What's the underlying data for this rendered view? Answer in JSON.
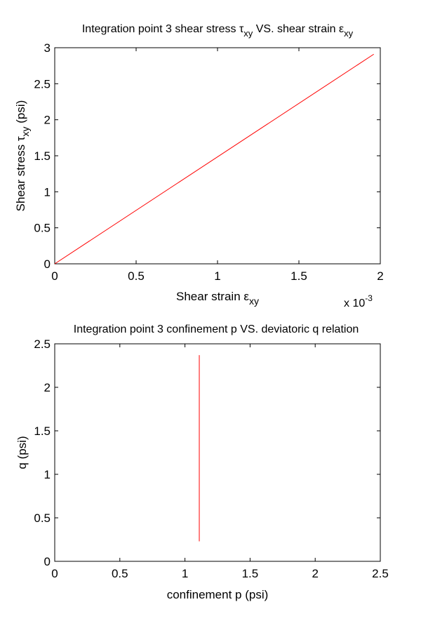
{
  "chart_data": [
    {
      "type": "line",
      "title": "Integration point 3 shear stress τxy VS. shear strain εxy",
      "title_parts": {
        "a": "Integration point 3 shear stress ",
        "tau": "τ",
        "tau_sub": "xy",
        "b": " VS. shear strain ",
        "eps": "ε",
        "eps_sub": "xy"
      },
      "xlabel_parts": {
        "a": "Shear strain ",
        "eps": "ε",
        "sub": "xy"
      },
      "ylabel_parts": {
        "a": "Shear stress ",
        "tau": "τ",
        "sub": "xy",
        "b": " (psi)"
      },
      "x_exponent": {
        "base": "x 10",
        "exp": "-3"
      },
      "xlim": [
        0,
        0.002
      ],
      "ylim": [
        0,
        3
      ],
      "xticks": [
        0,
        0.0005,
        0.001,
        0.0015,
        0.002
      ],
      "xtick_labels": [
        "0",
        "0.5",
        "1",
        "1.5",
        "2"
      ],
      "yticks": [
        0,
        0.5,
        1,
        1.5,
        2,
        2.5,
        3
      ],
      "ytick_labels": [
        "0",
        "0.5",
        "1",
        "1.5",
        "2",
        "2.5",
        "3"
      ],
      "grid": false,
      "series": [
        {
          "name": "shear",
          "color": "#ff0000",
          "x": [
            0,
            0.00196
          ],
          "y": [
            0,
            2.91
          ]
        }
      ]
    },
    {
      "type": "line",
      "title": "Integration point 3 confinement p VS. deviatoric q relation",
      "xlabel": "confinement p (psi)",
      "ylabel": "q (psi)",
      "xlim": [
        0,
        2.5
      ],
      "ylim": [
        0,
        2.5
      ],
      "xticks": [
        0,
        0.5,
        1,
        1.5,
        2,
        2.5
      ],
      "xtick_labels": [
        "0",
        "0.5",
        "1",
        "1.5",
        "2",
        "2.5"
      ],
      "yticks": [
        0,
        0.5,
        1,
        1.5,
        2,
        2.5
      ],
      "ytick_labels": [
        "0",
        "0.5",
        "1",
        "1.5",
        "2",
        "2.5"
      ],
      "grid": false,
      "series": [
        {
          "name": "p-q",
          "color": "#ff0000",
          "x": [
            1.11,
            1.11
          ],
          "y": [
            0.23,
            2.37
          ]
        }
      ]
    }
  ]
}
